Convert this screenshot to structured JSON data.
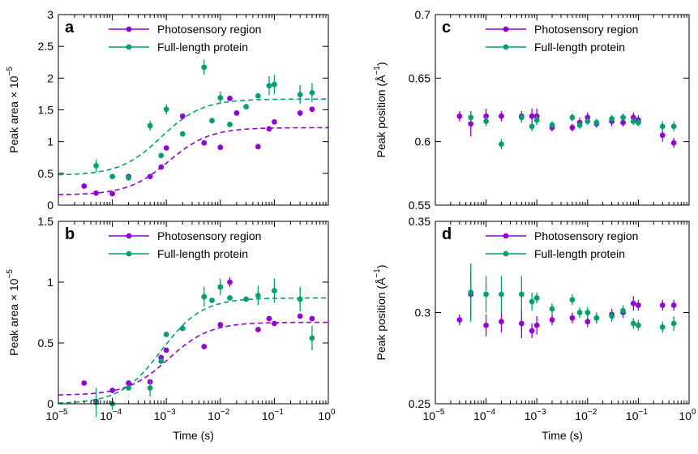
{
  "colors": {
    "photosensory": "#9400d3",
    "full_length": "#009e73",
    "axis": "#000000"
  },
  "chart_data": [
    {
      "panel": "a",
      "type": "scatter",
      "xscale": "log",
      "xlim": [
        1e-05,
        1
      ],
      "xticks": [
        1e-05,
        0.0001,
        0.001,
        0.01,
        0.1,
        1
      ],
      "xtick_labels": [
        "",
        "",
        "",
        "",
        "",
        ""
      ],
      "xlabel": "",
      "ylim": [
        0,
        3
      ],
      "yticks": [
        0,
        0.5,
        1,
        1.5,
        2,
        2.5,
        3
      ],
      "ytick_labels": [
        "0",
        "0.5",
        "1",
        "1.5",
        "2",
        "2.5",
        "3"
      ],
      "ylabel": "Peak area × 10",
      "ylabel_exponent": "−5",
      "legend": "top-center",
      "series": [
        {
          "name": "Photosensory region",
          "color": "#9400d3",
          "points": [
            {
              "x": 3e-05,
              "y": 0.3
            },
            {
              "x": 5e-05,
              "y": 0.19
            },
            {
              "x": 0.0001,
              "y": 0.18
            },
            {
              "x": 0.0002,
              "y": 0.45
            },
            {
              "x": 0.0005,
              "y": 0.45
            },
            {
              "x": 0.0008,
              "y": 0.6
            },
            {
              "x": 0.001,
              "y": 0.9
            },
            {
              "x": 0.002,
              "y": 1.4
            },
            {
              "x": 0.005,
              "y": 0.98
            },
            {
              "x": 0.01,
              "y": 0.91
            },
            {
              "x": 0.015,
              "y": 1.68
            },
            {
              "x": 0.02,
              "y": 1.45
            },
            {
              "x": 0.05,
              "y": 0.92
            },
            {
              "x": 0.08,
              "y": 1.2
            },
            {
              "x": 0.1,
              "y": 1.31
            },
            {
              "x": 0.3,
              "y": 1.45
            },
            {
              "x": 0.5,
              "y": 1.51
            }
          ],
          "fit": {
            "y0": 0.16,
            "y1": 1.22,
            "x_mid": 0.0011,
            "width_decades": 0.38
          }
        },
        {
          "name": "Full-length protein",
          "color": "#009e73",
          "points": [
            {
              "x": 5e-05,
              "y": 0.62,
              "err": 0.1
            },
            {
              "x": 0.0001,
              "y": 0.45
            },
            {
              "x": 0.0002,
              "y": 0.43
            },
            {
              "x": 0.0005,
              "y": 1.25,
              "err": 0.08
            },
            {
              "x": 0.0008,
              "y": 0.78
            },
            {
              "x": 0.001,
              "y": 1.51,
              "err": 0.08
            },
            {
              "x": 0.002,
              "y": 1.12
            },
            {
              "x": 0.005,
              "y": 2.17,
              "err": 0.12
            },
            {
              "x": 0.007,
              "y": 1.33
            },
            {
              "x": 0.01,
              "y": 1.69,
              "err": 0.1
            },
            {
              "x": 0.015,
              "y": 1.27
            },
            {
              "x": 0.03,
              "y": 1.55
            },
            {
              "x": 0.05,
              "y": 1.72
            },
            {
              "x": 0.08,
              "y": 1.88,
              "err": 0.15
            },
            {
              "x": 0.1,
              "y": 1.9,
              "err": 0.15
            },
            {
              "x": 0.3,
              "y": 1.74,
              "err": 0.15
            },
            {
              "x": 0.5,
              "y": 1.77,
              "err": 0.15
            }
          ],
          "fit": {
            "y0": 0.47,
            "y1": 1.67,
            "x_mid": 0.0008,
            "width_decades": 0.38
          }
        }
      ]
    },
    {
      "panel": "b",
      "type": "scatter",
      "xscale": "log",
      "xlim": [
        1e-05,
        1
      ],
      "xticks": [
        1e-05,
        0.0001,
        0.001,
        0.01,
        0.1,
        1
      ],
      "xtick_labels": [
        "10",
        "10",
        "10",
        "10",
        "10",
        "10"
      ],
      "xtick_exponents": [
        "−5",
        "−4",
        "−3",
        "−2",
        "−1",
        "0"
      ],
      "xlabel": "Time (s)",
      "ylim": [
        0,
        1.5
      ],
      "yticks": [
        0,
        0.5,
        1,
        1.5
      ],
      "ytick_labels": [
        "0",
        "0.5",
        "1",
        "1.5"
      ],
      "ylabel": "Peak area × 10",
      "ylabel_exponent": "−5",
      "legend": "top-center",
      "series": [
        {
          "name": "Photosensory region",
          "color": "#9400d3",
          "points": [
            {
              "x": 3e-05,
              "y": 0.17
            },
            {
              "x": 5e-05,
              "y": 0.02
            },
            {
              "x": 0.0001,
              "y": 0.11
            },
            {
              "x": 0.0002,
              "y": 0.17
            },
            {
              "x": 0.0005,
              "y": 0.18
            },
            {
              "x": 0.0008,
              "y": 0.38
            },
            {
              "x": 0.001,
              "y": 0.44
            },
            {
              "x": 0.002,
              "y": 0.62
            },
            {
              "x": 0.005,
              "y": 0.47
            },
            {
              "x": 0.01,
              "y": 0.65
            },
            {
              "x": 0.015,
              "y": 1.0,
              "err": 0.04
            },
            {
              "x": 0.05,
              "y": 0.61
            },
            {
              "x": 0.08,
              "y": 0.7
            },
            {
              "x": 0.1,
              "y": 0.66
            },
            {
              "x": 0.3,
              "y": 0.72
            },
            {
              "x": 0.5,
              "y": 0.7
            }
          ],
          "fit": {
            "y0": 0.07,
            "y1": 0.67,
            "x_mid": 0.0011,
            "width_decades": 0.38
          }
        },
        {
          "name": "Full-length protein",
          "color": "#009e73",
          "points": [
            {
              "x": 5e-05,
              "y": 0.01,
              "err": 0.12
            },
            {
              "x": 0.0001,
              "y": 0.0,
              "err": 0.05
            },
            {
              "x": 0.0002,
              "y": 0.13
            },
            {
              "x": 0.0005,
              "y": 0.13,
              "err": 0.07
            },
            {
              "x": 0.0008,
              "y": 0.35
            },
            {
              "x": 0.001,
              "y": 0.57
            },
            {
              "x": 0.002,
              "y": 0.62
            },
            {
              "x": 0.005,
              "y": 0.88,
              "err": 0.08
            },
            {
              "x": 0.007,
              "y": 0.85
            },
            {
              "x": 0.01,
              "y": 0.96,
              "err": 0.07
            },
            {
              "x": 0.015,
              "y": 0.87
            },
            {
              "x": 0.03,
              "y": 0.86
            },
            {
              "x": 0.05,
              "y": 0.89,
              "err": 0.08
            },
            {
              "x": 0.1,
              "y": 0.93,
              "err": 0.1
            },
            {
              "x": 0.3,
              "y": 0.86,
              "err": 0.1
            },
            {
              "x": 0.5,
              "y": 0.54,
              "err": 0.1
            }
          ],
          "fit": {
            "y0": 0.0,
            "y1": 0.87,
            "x_mid": 0.0008,
            "width_decades": 0.38
          }
        }
      ]
    },
    {
      "panel": "c",
      "type": "scatter",
      "xscale": "log",
      "xlim": [
        1e-05,
        1
      ],
      "xticks": [
        1e-05,
        0.0001,
        0.001,
        0.01,
        0.1,
        1
      ],
      "xtick_labels": [
        "",
        "",
        "",
        "",
        "",
        ""
      ],
      "xlabel": "",
      "ylim": [
        0.55,
        0.7
      ],
      "yticks": [
        0.55,
        0.6,
        0.65,
        0.7
      ],
      "ytick_labels": [
        "0.55",
        "0.6",
        "0.65",
        "0.7"
      ],
      "ylabel": "Peak position (Å",
      "ylabel_exponent": "−1",
      "ylabel_close": ")",
      "legend": "top-center",
      "series": [
        {
          "name": "Photosensory region",
          "color": "#9400d3",
          "points": [
            {
              "x": 3e-05,
              "y": 0.62,
              "err": 0.004
            },
            {
              "x": 5e-05,
              "y": 0.614,
              "err": 0.01
            },
            {
              "x": 0.0001,
              "y": 0.62,
              "err": 0.006
            },
            {
              "x": 0.0002,
              "y": 0.62,
              "err": 0.004
            },
            {
              "x": 0.0005,
              "y": 0.62,
              "err": 0.004
            },
            {
              "x": 0.0008,
              "y": 0.62,
              "err": 0.006
            },
            {
              "x": 0.001,
              "y": 0.62,
              "err": 0.006
            },
            {
              "x": 0.002,
              "y": 0.611,
              "err": 0.003
            },
            {
              "x": 0.005,
              "y": 0.611,
              "err": 0.003
            },
            {
              "x": 0.007,
              "y": 0.615,
              "err": 0.004
            },
            {
              "x": 0.01,
              "y": 0.619,
              "err": 0.004
            },
            {
              "x": 0.015,
              "y": 0.614,
              "err": 0.003
            },
            {
              "x": 0.03,
              "y": 0.616,
              "err": 0.004
            },
            {
              "x": 0.05,
              "y": 0.615,
              "err": 0.003
            },
            {
              "x": 0.08,
              "y": 0.619,
              "err": 0.004
            },
            {
              "x": 0.1,
              "y": 0.617,
              "err": 0.004
            },
            {
              "x": 0.3,
              "y": 0.605,
              "err": 0.005
            },
            {
              "x": 0.5,
              "y": 0.599,
              "err": 0.004
            }
          ]
        },
        {
          "name": "Full-length protein",
          "color": "#009e73",
          "points": [
            {
              "x": 5e-05,
              "y": 0.619,
              "err": 0.004
            },
            {
              "x": 0.0001,
              "y": 0.616,
              "err": 0.004
            },
            {
              "x": 0.0002,
              "y": 0.598,
              "err": 0.004
            },
            {
              "x": 0.0005,
              "y": 0.619,
              "err": 0.004
            },
            {
              "x": 0.0008,
              "y": 0.612,
              "err": 0.004
            },
            {
              "x": 0.001,
              "y": 0.617,
              "err": 0.004
            },
            {
              "x": 0.002,
              "y": 0.613,
              "err": 0.003
            },
            {
              "x": 0.005,
              "y": 0.619,
              "err": 0.003
            },
            {
              "x": 0.007,
              "y": 0.613,
              "err": 0.003
            },
            {
              "x": 0.01,
              "y": 0.616,
              "err": 0.003
            },
            {
              "x": 0.015,
              "y": 0.615,
              "err": 0.003
            },
            {
              "x": 0.03,
              "y": 0.618,
              "err": 0.003
            },
            {
              "x": 0.05,
              "y": 0.619,
              "err": 0.003
            },
            {
              "x": 0.08,
              "y": 0.616,
              "err": 0.003
            },
            {
              "x": 0.1,
              "y": 0.615,
              "err": 0.003
            },
            {
              "x": 0.3,
              "y": 0.612,
              "err": 0.004
            },
            {
              "x": 0.5,
              "y": 0.612,
              "err": 0.004
            }
          ]
        }
      ]
    },
    {
      "panel": "d",
      "type": "scatter",
      "xscale": "log",
      "xlim": [
        1e-05,
        1
      ],
      "xticks": [
        1e-05,
        0.0001,
        0.001,
        0.01,
        0.1,
        1
      ],
      "xtick_labels": [
        "10",
        "10",
        "10",
        "10",
        "10",
        "10"
      ],
      "xtick_exponents": [
        "−5",
        "−4",
        "−3",
        "−2",
        "−1",
        "0"
      ],
      "xlabel": "Time (s)",
      "ylim": [
        0.25,
        0.35
      ],
      "yticks": [
        0.25,
        0.3,
        0.35
      ],
      "ytick_labels": [
        "0.25",
        "0.3",
        "0.35"
      ],
      "ylabel": "Peak position (Å",
      "ylabel_exponent": "−1",
      "ylabel_close": ")",
      "legend": "top-center",
      "series": [
        {
          "name": "Photosensory region",
          "color": "#9400d3",
          "points": [
            {
              "x": 3e-05,
              "y": 0.296,
              "err": 0.003
            },
            {
              "x": 5e-05,
              "y": 0.31,
              "err": 0.012
            },
            {
              "x": 0.0001,
              "y": 0.293,
              "err": 0.006
            },
            {
              "x": 0.0002,
              "y": 0.295,
              "err": 0.006
            },
            {
              "x": 0.0005,
              "y": 0.294,
              "err": 0.008
            },
            {
              "x": 0.0008,
              "y": 0.29,
              "err": 0.004
            },
            {
              "x": 0.001,
              "y": 0.293,
              "err": 0.005
            },
            {
              "x": 0.002,
              "y": 0.296,
              "err": 0.003
            },
            {
              "x": 0.005,
              "y": 0.297,
              "err": 0.003
            },
            {
              "x": 0.01,
              "y": 0.295,
              "err": 0.003
            },
            {
              "x": 0.015,
              "y": 0.297,
              "err": 0.003
            },
            {
              "x": 0.03,
              "y": 0.299,
              "err": 0.003
            },
            {
              "x": 0.05,
              "y": 0.3,
              "err": 0.003
            },
            {
              "x": 0.08,
              "y": 0.305,
              "err": 0.004
            },
            {
              "x": 0.1,
              "y": 0.304,
              "err": 0.003
            },
            {
              "x": 0.3,
              "y": 0.304,
              "err": 0.003
            },
            {
              "x": 0.5,
              "y": 0.304,
              "err": 0.003
            }
          ]
        },
        {
          "name": "Full-length protein",
          "color": "#009e73",
          "points": [
            {
              "x": 5e-05,
              "y": 0.311,
              "err": 0.016
            },
            {
              "x": 0.0001,
              "y": 0.31,
              "err": 0.01
            },
            {
              "x": 0.0002,
              "y": 0.31,
              "err": 0.01
            },
            {
              "x": 0.0005,
              "y": 0.31,
              "err": 0.01
            },
            {
              "x": 0.0008,
              "y": 0.306,
              "err": 0.005
            },
            {
              "x": 0.001,
              "y": 0.308,
              "err": 0.003
            },
            {
              "x": 0.002,
              "y": 0.302,
              "err": 0.003
            },
            {
              "x": 0.005,
              "y": 0.307,
              "err": 0.003
            },
            {
              "x": 0.007,
              "y": 0.3,
              "err": 0.003
            },
            {
              "x": 0.01,
              "y": 0.3,
              "err": 0.003
            },
            {
              "x": 0.015,
              "y": 0.297,
              "err": 0.003
            },
            {
              "x": 0.03,
              "y": 0.298,
              "err": 0.003
            },
            {
              "x": 0.05,
              "y": 0.301,
              "err": 0.003
            },
            {
              "x": 0.08,
              "y": 0.294,
              "err": 0.003
            },
            {
              "x": 0.1,
              "y": 0.293,
              "err": 0.003
            },
            {
              "x": 0.3,
              "y": 0.292,
              "err": 0.003
            },
            {
              "x": 0.5,
              "y": 0.294,
              "err": 0.004
            }
          ]
        }
      ]
    }
  ]
}
